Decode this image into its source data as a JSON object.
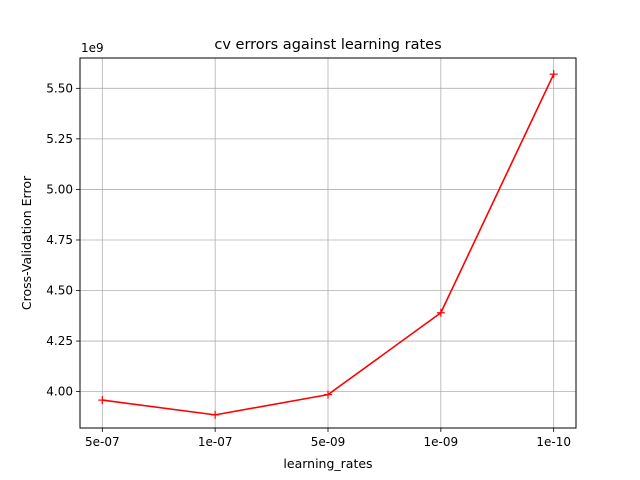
{
  "chart_data": {
    "type": "line",
    "title": "cv errors against learning rates",
    "xlabel": "learning_rates",
    "ylabel": "Cross-Validation Error",
    "y_offset_label": "1e9",
    "categories": [
      "5e-07",
      "1e-07",
      "5e-09",
      "1e-09",
      "1e-10"
    ],
    "series": [
      {
        "values": [
          3958000000,
          3885000000,
          3985000000,
          4390000000,
          5570000000
        ],
        "color": "#ff0000",
        "marker": "plus"
      }
    ],
    "yticks": [
      4.0,
      4.25,
      4.5,
      4.75,
      5.0,
      5.25,
      5.5
    ],
    "ytick_labels": [
      "4.00",
      "4.25",
      "4.50",
      "4.75",
      "5.00",
      "5.25",
      "5.50"
    ],
    "ylim": [
      3820000000,
      5650000000
    ],
    "grid": true,
    "legend": null
  }
}
